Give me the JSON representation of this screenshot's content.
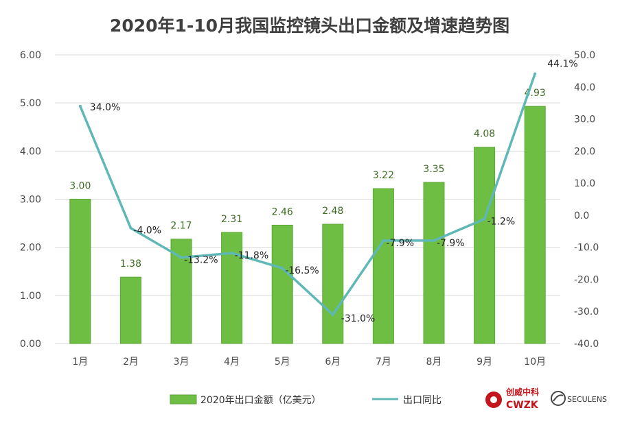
{
  "colors": {
    "bar": "#6fbe44",
    "bar_edge": "#5aa535",
    "line": "#5fb8b6",
    "grid": "#d9d9d9"
  },
  "chart_data": {
    "type": "bar",
    "title": "2020年1-10月我国监控镜头出口金额及增速趋势图",
    "categories": [
      "1月",
      "2月",
      "3月",
      "4月",
      "5月",
      "6月",
      "7月",
      "8月",
      "9月",
      "10月"
    ],
    "y_left": {
      "min": 0,
      "max": 6,
      "ticks": [
        "0.00",
        "1.00",
        "2.00",
        "3.00",
        "4.00",
        "5.00",
        "6.00"
      ]
    },
    "y_right": {
      "min": -40,
      "max": 50,
      "ticks": [
        "-40.0",
        "-30.0",
        "-20.0",
        "-10.0",
        "0.0",
        "10.0",
        "20.0",
        "30.0",
        "40.0",
        "50.0"
      ]
    },
    "grid": true,
    "legend_position": "bottom",
    "series": [
      {
        "name": "2020年出口金额（亿美元）",
        "type": "bar",
        "axis": "left",
        "values": [
          3.0,
          1.38,
          2.17,
          2.31,
          2.46,
          2.48,
          3.22,
          3.35,
          4.08,
          4.93
        ],
        "labels": [
          "3.00",
          "1.38",
          "2.17",
          "2.31",
          "2.46",
          "2.48",
          "3.22",
          "3.35",
          "4.08",
          "4.93"
        ]
      },
      {
        "name": "出口同比",
        "type": "line",
        "axis": "right",
        "values": [
          34.0,
          -4.0,
          -13.2,
          -11.8,
          -16.5,
          -31.0,
          -7.9,
          -7.9,
          -1.2,
          44.1
        ],
        "labels": [
          "34.0%",
          "-4.0%",
          "-13.2%",
          "-11.8%",
          "-16.5%",
          "-31.0%",
          "-7.9%",
          "-7.9%",
          "-1.2%",
          "44.1%"
        ]
      }
    ]
  },
  "logos": {
    "cwzk_cn": "创威中科",
    "cwzk_en": "CWZK",
    "seculens": "SECULENS"
  }
}
